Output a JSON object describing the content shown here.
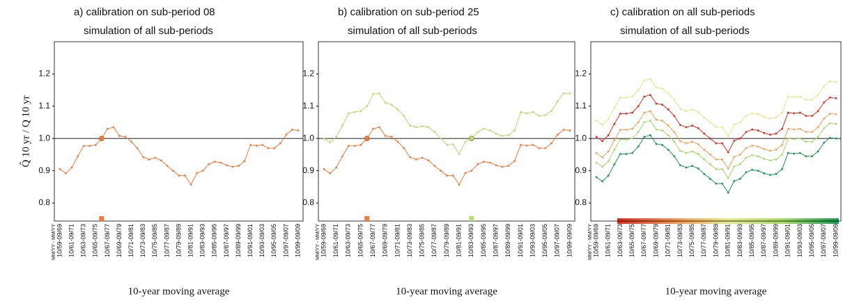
{
  "chart_data": [
    {
      "type": "line",
      "title": "a) calibration on sub-period 08",
      "subtitle": "simulation of all sub-periods",
      "xlabel": "10-year moving average",
      "ylabel": "Q̂ 10 yr / Q 10 yr",
      "xheader": "MM/YY - MM/YY",
      "categories": [
        "10/59-09/69",
        null,
        "10/61-09/71",
        null,
        "10/63-09/73",
        null,
        "10/65-09/75",
        null,
        "10/67-09/77",
        null,
        "10/69-09/79",
        null,
        "10/71-09/81",
        null,
        "10/73-09/83",
        null,
        "10/75-09/85",
        null,
        "10/77-09/87",
        null,
        "10/79-09/89",
        null,
        "10/81-09/91",
        null,
        "10/83-09/93",
        null,
        "10/85-09/95",
        null,
        "10/87-09/97",
        null,
        "10/89-09/99",
        null,
        "10/91-09/01",
        null,
        "10/93-09/03",
        null,
        "10/95-09/05",
        null,
        "10/97-09/07",
        null,
        "10/99-09/09"
      ],
      "ylim": [
        0.744,
        1.3
      ],
      "yticks": [
        0.8,
        0.9,
        {
          "value": 1,
          "label": "1.0"
        },
        1.1,
        1.2
      ],
      "hline": 1,
      "series": [
        {
          "color": "#f07a3a",
          "highlight": 7,
          "values": [
            0.905,
            0.892,
            0.91,
            0.945,
            0.977,
            0.977,
            0.98,
            1.0,
            1.03,
            1.035,
            1.008,
            1.005,
            0.99,
            0.97,
            0.942,
            0.935,
            0.94,
            0.932,
            0.915,
            0.9,
            0.885,
            0.885,
            0.857,
            0.893,
            0.9,
            0.92,
            0.928,
            0.925,
            0.917,
            0.912,
            0.915,
            0.93,
            0.98,
            0.978,
            0.98,
            0.97,
            0.97,
            0.985,
            1.012,
            1.027,
            1.025
          ]
        }
      ]
    },
    {
      "type": "line",
      "title": "b) calibration on sub-period 25",
      "subtitle": "simulation of all sub-periods",
      "xlabel": "10-year moving average",
      "xheader": "MM/YY - MM/YY",
      "categories": [
        "10/59-09/69",
        null,
        "10/61-09/71",
        null,
        "10/63-09/73",
        null,
        "10/65-09/75",
        null,
        "10/67-09/77",
        null,
        "10/69-09/79",
        null,
        "10/71-09/81",
        null,
        "10/73-09/83",
        null,
        "10/75-09/85",
        null,
        "10/77-09/87",
        null,
        "10/79-09/89",
        null,
        "10/81-09/91",
        null,
        "10/83-09/93",
        null,
        "10/85-09/95",
        null,
        "10/87-09/97",
        null,
        "10/89-09/99",
        null,
        "10/91-09/01",
        null,
        "10/93-09/03",
        null,
        "10/95-09/05",
        null,
        "10/97-09/07",
        null,
        "10/99-09/09"
      ],
      "ylim": [
        0.744,
        1.3
      ],
      "yticks": [
        0.8,
        0.9,
        {
          "value": 1,
          "label": "1.0"
        },
        1.1,
        1.2
      ],
      "hline": 1,
      "series": [
        {
          "color": "#f07a3a",
          "highlight": 7,
          "values": [
            0.905,
            0.892,
            0.91,
            0.945,
            0.977,
            0.977,
            0.98,
            1.0,
            1.03,
            1.035,
            1.008,
            1.005,
            0.99,
            0.97,
            0.942,
            0.935,
            0.94,
            0.932,
            0.915,
            0.9,
            0.885,
            0.885,
            0.857,
            0.893,
            0.9,
            0.92,
            0.928,
            0.925,
            0.917,
            0.912,
            0.915,
            0.93,
            0.98,
            0.978,
            0.98,
            0.97,
            0.97,
            0.985,
            1.012,
            1.027,
            1.025
          ]
        },
        {
          "color": "#b5de6e",
          "highlight": 24,
          "values": [
            1.0,
            0.988,
            1.005,
            1.04,
            1.078,
            1.082,
            1.085,
            1.1,
            1.138,
            1.14,
            1.11,
            1.105,
            1.09,
            1.07,
            1.04,
            1.035,
            1.038,
            1.035,
            1.02,
            1.0,
            0.98,
            0.982,
            0.952,
            0.99,
            1.0,
            1.02,
            1.03,
            1.025,
            1.015,
            1.008,
            1.01,
            1.025,
            1.082,
            1.078,
            1.082,
            1.07,
            1.072,
            1.085,
            1.115,
            1.14,
            1.14
          ]
        }
      ]
    },
    {
      "type": "line",
      "title": "c) calibration on all sub-periods",
      "subtitle": "simulation of all sub-periods",
      "xlabel": "10-year moving average",
      "xheader": "MM/YY - MM/YY",
      "categories": [
        "10/59-09/69",
        null,
        "10/61-09/71",
        null,
        "10/63-09/73",
        null,
        "10/65-09/75",
        null,
        "10/67-09/77",
        null,
        "10/69-09/79",
        null,
        "10/71-09/81",
        null,
        "10/73-09/83",
        null,
        "10/75-09/85",
        null,
        "10/77-09/87",
        null,
        "10/79-09/89",
        null,
        "10/81-09/91",
        null,
        "10/83-09/93",
        null,
        "10/85-09/95",
        null,
        "10/87-09/97",
        null,
        "10/89-09/99",
        null,
        "10/91-09/01",
        null,
        "10/93-09/03",
        null,
        "10/95-09/05",
        null,
        "10/97-09/07",
        null,
        "10/99-09/09"
      ],
      "ylim": [
        0.744,
        1.3
      ],
      "yticks": [
        0.8,
        0.9,
        {
          "value": 1,
          "label": "1.0"
        },
        1.1,
        1.2
      ],
      "hline": 1,
      "series": [
        {
          "color": "#e6e88c",
          "values": [
            1.055,
            1.042,
            1.06,
            1.095,
            1.127,
            1.127,
            1.13,
            1.15,
            1.18,
            1.185,
            1.158,
            1.155,
            1.14,
            1.12,
            1.092,
            1.085,
            1.09,
            1.082,
            1.065,
            1.05,
            1.035,
            1.035,
            1.007,
            1.043,
            1.05,
            1.07,
            1.078,
            1.075,
            1.067,
            1.062,
            1.065,
            1.08,
            1.13,
            1.128,
            1.13,
            1.12,
            1.12,
            1.135,
            1.162,
            1.177,
            1.175
          ]
        },
        {
          "color": "#d7301f",
          "values": [
            1.005,
            0.992,
            1.01,
            1.045,
            1.077,
            1.077,
            1.08,
            1.1,
            1.13,
            1.135,
            1.108,
            1.105,
            1.09,
            1.07,
            1.042,
            1.035,
            1.04,
            1.032,
            1.015,
            1.0,
            0.985,
            0.985,
            0.957,
            0.993,
            1.0,
            1.02,
            1.028,
            1.025,
            1.017,
            1.012,
            1.015,
            1.03,
            1.08,
            1.078,
            1.08,
            1.07,
            1.07,
            1.085,
            1.112,
            1.127,
            1.125
          ]
        },
        {
          "color": "#f4a25a",
          "values": [
            0.955,
            0.942,
            0.96,
            0.995,
            1.027,
            1.027,
            1.03,
            1.05,
            1.08,
            1.085,
            1.058,
            1.055,
            1.04,
            1.02,
            0.992,
            0.985,
            0.99,
            0.982,
            0.965,
            0.95,
            0.935,
            0.935,
            0.907,
            0.943,
            0.95,
            0.97,
            0.978,
            0.975,
            0.967,
            0.962,
            0.965,
            0.98,
            1.03,
            1.028,
            1.03,
            1.02,
            1.02,
            1.035,
            1.062,
            1.077,
            1.075
          ]
        },
        {
          "color": "#a6d96a",
          "values": [
            0.925,
            0.912,
            0.93,
            0.965,
            0.997,
            0.997,
            1.0,
            1.02,
            1.05,
            1.055,
            1.028,
            1.025,
            1.01,
            0.99,
            0.962,
            0.955,
            0.96,
            0.952,
            0.935,
            0.92,
            0.905,
            0.905,
            0.877,
            0.913,
            0.92,
            0.94,
            0.948,
            0.945,
            0.937,
            0.932,
            0.935,
            0.95,
            1.0,
            0.998,
            1.0,
            0.99,
            0.99,
            1.005,
            1.032,
            1.047,
            1.045
          ]
        },
        {
          "color": "#1a9850",
          "values": [
            0.88,
            0.867,
            0.885,
            0.92,
            0.952,
            0.952,
            0.955,
            0.975,
            1.005,
            1.01,
            0.983,
            0.98,
            0.965,
            0.945,
            0.917,
            0.91,
            0.915,
            0.907,
            0.89,
            0.875,
            0.86,
            0.86,
            0.832,
            0.868,
            0.875,
            0.895,
            0.903,
            0.9,
            0.892,
            0.887,
            0.89,
            0.905,
            0.955,
            0.953,
            0.955,
            0.945,
            0.945,
            0.96,
            0.987,
            1.002,
            1.0
          ]
        }
      ]
    }
  ]
}
